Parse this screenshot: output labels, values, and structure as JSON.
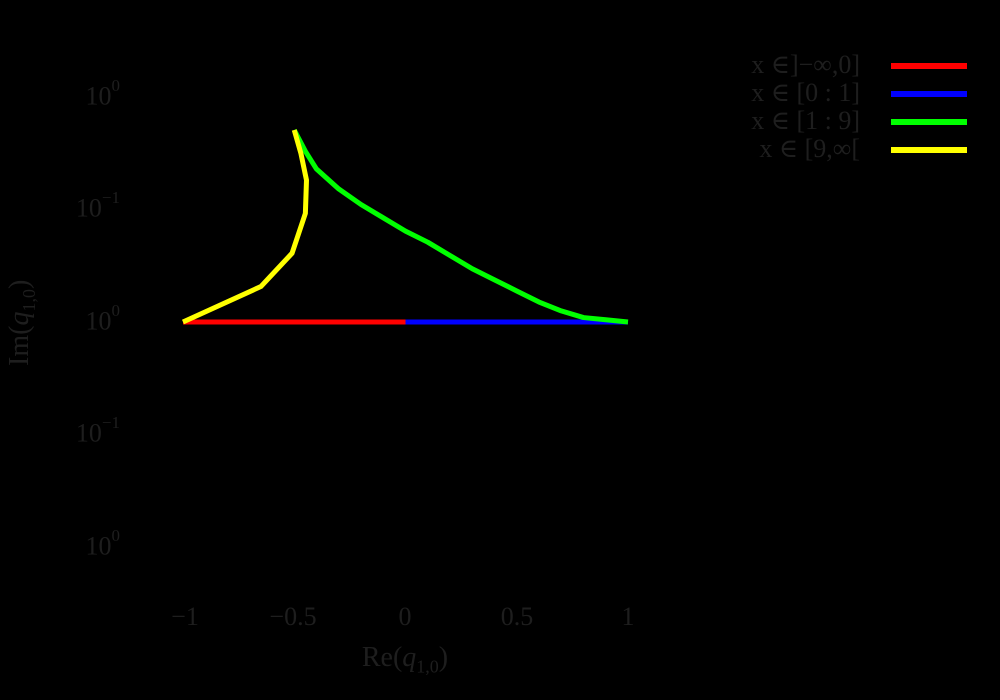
{
  "chart_data": {
    "type": "line",
    "title": "",
    "xlabel": "Re(q_{1,0})",
    "ylabel": "Im(q_{1,0})",
    "xlim": [
      -1,
      1
    ],
    "x_ticks": [
      "−1",
      "−0.5",
      "0",
      "0.5",
      "1"
    ],
    "y_ticks": [
      {
        "base": "10",
        "exp": "0"
      },
      {
        "base": "10",
        "exp": "−1"
      },
      {
        "base": "10",
        "exp": "0"
      },
      {
        "base": "10",
        "exp": "−1"
      },
      {
        "base": "10",
        "exp": "0"
      }
    ],
    "grid": false,
    "legend_position": "upper right (outside)",
    "series": [
      {
        "name": "x ∈]−∞,0]",
        "color": "#ff0000",
        "points": [
          [
            -1,
            0
          ],
          [
            0,
            0
          ]
        ]
      },
      {
        "name": "x ∈ [0 : 1]",
        "color": "#0000ff",
        "points": [
          [
            0,
            0
          ],
          [
            1,
            0
          ]
        ]
      },
      {
        "name": "x ∈ [1 : 9]",
        "color": "#00ff00",
        "points": [
          [
            -0.5,
            0.866
          ],
          [
            -0.45,
            0.77
          ],
          [
            -0.4,
            0.69
          ],
          [
            -0.3,
            0.6
          ],
          [
            -0.2,
            0.53
          ],
          [
            -0.1,
            0.47
          ],
          [
            0,
            0.41
          ],
          [
            0.1,
            0.36
          ],
          [
            0.2,
            0.3
          ],
          [
            0.3,
            0.24
          ],
          [
            0.4,
            0.19
          ],
          [
            0.5,
            0.14
          ],
          [
            0.6,
            0.09
          ],
          [
            0.7,
            0.05
          ],
          [
            0.8,
            0.02
          ],
          [
            0.9,
            0.01
          ],
          [
            1,
            0
          ]
        ]
      },
      {
        "name": "x ∈ [9,∞[",
        "color": "#ffff00",
        "points": [
          [
            -0.5,
            0.866
          ],
          [
            -0.47,
            0.76
          ],
          [
            -0.445,
            0.64
          ],
          [
            -0.45,
            0.49
          ],
          [
            -0.51,
            0.31
          ],
          [
            -0.65,
            0.16
          ],
          [
            -1,
            0
          ]
        ]
      }
    ]
  },
  "legend": {
    "items": [
      {
        "label": "x ∈]−∞,0]",
        "color": "#ff0000"
      },
      {
        "label": "x ∈ [0 : 1]",
        "color": "#0000ff"
      },
      {
        "label": "x ∈ [1 : 9]",
        "color": "#00ff00"
      },
      {
        "label": "x ∈ [9,∞[",
        "color": "#ffff00"
      }
    ]
  },
  "axes": {
    "x_label_main": "Re(",
    "x_label_var": "q",
    "x_label_sub": "1,0",
    "x_label_close": ")",
    "y_label_main": "Im(",
    "y_label_var": "q",
    "y_label_sub": "1,0",
    "y_label_close": ")"
  }
}
